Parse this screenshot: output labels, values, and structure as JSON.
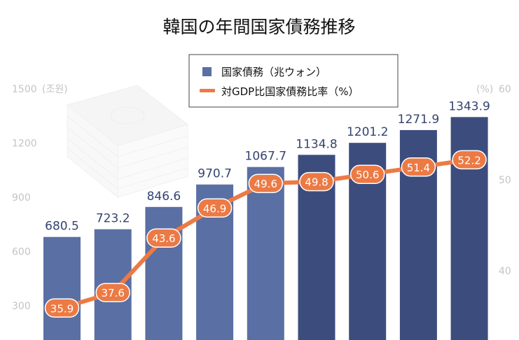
{
  "chart_data": {
    "type": "bar",
    "title": "韓国の年間国家債務推移",
    "categories": [
      "",
      "",
      "",
      "",
      "",
      "",
      "",
      "",
      ""
    ],
    "series": [
      {
        "name": "国家債務（兆ウォン）",
        "type": "bar",
        "axis": "left",
        "values": [
          680.5,
          723.2,
          846.6,
          970.7,
          1067.7,
          1134.8,
          1201.2,
          1271.9,
          1343.9
        ]
      },
      {
        "name": "対GDP比国家債務比率（%）",
        "type": "line",
        "axis": "right",
        "values": [
          35.9,
          37.6,
          43.6,
          46.9,
          49.6,
          49.8,
          50.6,
          51.4,
          52.2
        ]
      }
    ],
    "y_left": {
      "label": "(조원)",
      "ticks": [
        300,
        600,
        900,
        1200,
        1500
      ],
      "tick_labels": [
        "300",
        "600",
        "900",
        "1200",
        "1500"
      ]
    },
    "y_right": {
      "label": "(%)",
      "ticks": [
        40,
        50,
        60
      ],
      "tick_labels": [
        "40",
        "50",
        "60"
      ]
    },
    "legend_position": "top-center",
    "grid": false
  },
  "colors": {
    "bar_light": "#5a6fa3",
    "bar_dark": "#3c4d7d",
    "line": "#ec7a45",
    "point_fill": "#ec7a45",
    "label_bar": "#34446e",
    "axis": "#c4c4c4"
  }
}
